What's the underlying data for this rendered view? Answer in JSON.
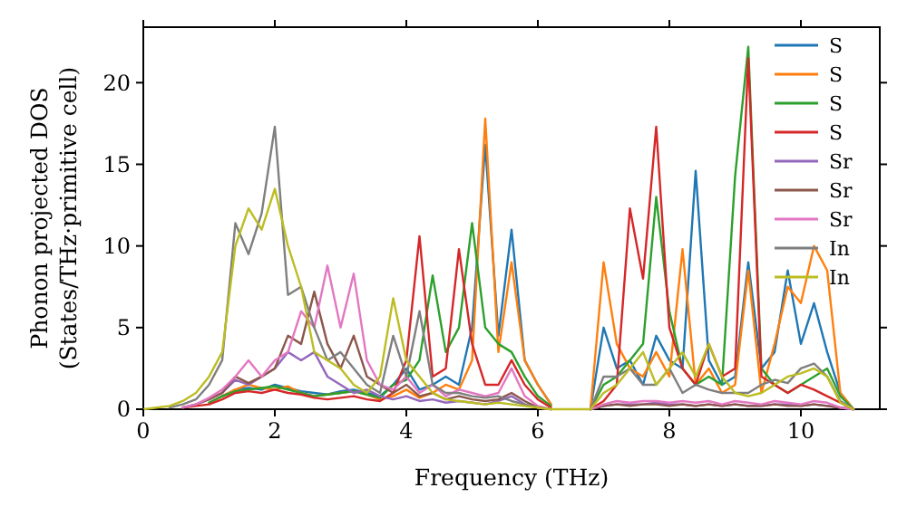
{
  "chart_data": {
    "type": "line",
    "xlabel": "Frequency (THz)",
    "ylabel": "Phonon projected DOS\n(States/THz·primitive cell)",
    "x": [
      0,
      0.2,
      0.4,
      0.6,
      0.8,
      1,
      1.2,
      1.4,
      1.6,
      1.8,
      2,
      2.2,
      2.4,
      2.6,
      2.8,
      3,
      3.2,
      3.4,
      3.6,
      3.8,
      4,
      4.2,
      4.4,
      4.6,
      4.8,
      5,
      5.2,
      5.4,
      5.6,
      5.8,
      6,
      6.2,
      6.4,
      6.6,
      6.8,
      7,
      7.2,
      7.4,
      7.6,
      7.8,
      8,
      8.2,
      8.4,
      8.6,
      8.8,
      9,
      9.2,
      9.4,
      9.6,
      9.8,
      10,
      10.2,
      10.4,
      10.6,
      10.8
    ],
    "xlim": [
      0,
      11.2
    ],
    "xticks": [
      0,
      2,
      4,
      6,
      8,
      10
    ],
    "ylim": [
      0,
      23.4
    ],
    "yticks": [
      0,
      5,
      10,
      15,
      20
    ],
    "legend": "top right",
    "grid": false,
    "marker": "none",
    "line_style": "solid",
    "series": [
      {
        "name": "S",
        "color": "#1f77b4",
        "values": [
          null,
          null,
          null,
          null,
          null,
          null,
          0.8,
          1.2,
          1.3,
          1.2,
          1.5,
          1.3,
          1.1,
          1.0,
          0.9,
          1.1,
          1.2,
          1.0,
          0.8,
          1.5,
          2.5,
          1.2,
          1.5,
          2.0,
          1.5,
          5.0,
          16.2,
          4.5,
          11.0,
          3.0,
          1.5,
          0.3,
          null,
          null,
          0,
          5.0,
          2.5,
          3.0,
          1.5,
          4.5,
          3.0,
          2.5,
          14.6,
          3.0,
          1.5,
          2.0,
          9.0,
          2.5,
          3.5,
          8.5,
          4.0,
          6.5,
          3.5,
          1.0,
          0
        ]
      },
      {
        "name": "S",
        "color": "#ff7f0e",
        "values": [
          null,
          null,
          null,
          null,
          null,
          0.4,
          0.8,
          1.2,
          1.5,
          1.3,
          1.2,
          1.4,
          1.0,
          0.8,
          0.9,
          1.0,
          1.1,
          0.9,
          0.6,
          0.8,
          1.2,
          0.7,
          1.0,
          1.5,
          1.2,
          3.0,
          17.8,
          3.5,
          9.0,
          3.0,
          1.5,
          0.3,
          null,
          null,
          0,
          9.0,
          4.0,
          2.5,
          2.0,
          3.5,
          2.0,
          9.8,
          1.5,
          2.5,
          1.0,
          1.5,
          8.5,
          1.0,
          4.0,
          7.5,
          6.5,
          10.0,
          8.5,
          1.0,
          0
        ]
      },
      {
        "name": "S",
        "color": "#2ca02c",
        "values": [
          null,
          null,
          null,
          null,
          null,
          0.4,
          0.8,
          1.1,
          1.2,
          1.3,
          1.4,
          1.2,
          1.0,
          0.8,
          0.9,
          1.0,
          1.1,
          0.9,
          0.7,
          1.5,
          1.8,
          3.0,
          8.2,
          3.5,
          5.0,
          11.4,
          5.0,
          4.0,
          3.5,
          2.0,
          0.8,
          0.2,
          null,
          null,
          0,
          1.5,
          2.0,
          3.0,
          4.0,
          13.0,
          6.0,
          2.5,
          1.5,
          2.0,
          1.5,
          14.3,
          22.2,
          2.5,
          1.5,
          1.0,
          1.5,
          2.0,
          2.5,
          0.8,
          0
        ]
      },
      {
        "name": "S",
        "color": "#d62728",
        "values": [
          null,
          null,
          null,
          0.1,
          0.2,
          0.3,
          0.6,
          1.0,
          1.1,
          1.0,
          1.2,
          1.0,
          0.9,
          0.7,
          0.6,
          0.7,
          0.8,
          0.6,
          0.5,
          1.0,
          3.0,
          10.6,
          2.0,
          2.5,
          9.8,
          4.0,
          1.5,
          1.5,
          3.0,
          1.5,
          0.6,
          0.1,
          null,
          null,
          0,
          0.5,
          1.5,
          12.3,
          8.0,
          17.3,
          5.0,
          2.5,
          1.5,
          4.0,
          2.0,
          2.5,
          21.5,
          2.0,
          1.5,
          1.0,
          1.5,
          1.2,
          0.8,
          0.4,
          0
        ]
      },
      {
        "name": "Sr",
        "color": "#9467bd",
        "values": [
          null,
          null,
          null,
          0.1,
          0.3,
          0.6,
          1.0,
          1.8,
          1.5,
          2.0,
          2.5,
          3.5,
          3.0,
          3.5,
          2.0,
          1.5,
          1.0,
          1.2,
          0.8,
          0.6,
          0.8,
          0.5,
          0.6,
          0.4,
          0.5,
          0.4,
          0.3,
          0.5,
          0.8,
          0.3,
          0.1,
          0,
          null,
          null,
          0,
          0.2,
          0.3,
          0.3,
          0.3,
          0.4,
          0.3,
          0.3,
          0.2,
          0.3,
          0.2,
          0.3,
          0.2,
          0.2,
          0.3,
          0.3,
          0.2,
          0.3,
          0.2,
          0.1,
          0
        ]
      },
      {
        "name": "Sr",
        "color": "#8c564b",
        "values": [
          null,
          null,
          null,
          0.1,
          0.3,
          0.6,
          1.0,
          2.0,
          1.6,
          2.0,
          2.5,
          4.5,
          4.0,
          7.2,
          4.0,
          2.5,
          4.5,
          2.0,
          1.5,
          1.0,
          1.5,
          0.8,
          1.0,
          0.6,
          0.8,
          0.6,
          0.5,
          0.6,
          1.0,
          0.5,
          0.1,
          0,
          null,
          null,
          0,
          0.2,
          0.3,
          0.2,
          0.3,
          0.3,
          0.2,
          0.3,
          0.2,
          0.3,
          0.2,
          0.3,
          0.2,
          0.2,
          0.3,
          0.2,
          0.2,
          0.3,
          0.2,
          0.1,
          0
        ]
      },
      {
        "name": "Sr",
        "color": "#e377c2",
        "values": [
          null,
          null,
          null,
          0.1,
          0.3,
          0.7,
          1.2,
          2.0,
          3.0,
          2.0,
          3.0,
          3.5,
          6.0,
          5.0,
          8.8,
          5.0,
          8.3,
          3.0,
          1.5,
          1.2,
          2.0,
          1.0,
          1.5,
          0.8,
          1.2,
          1.0,
          0.8,
          1.0,
          2.5,
          0.8,
          0.2,
          0,
          null,
          null,
          0,
          0.3,
          0.5,
          0.4,
          0.5,
          0.5,
          0.4,
          0.5,
          0.4,
          0.5,
          0.3,
          0.5,
          0.4,
          0.3,
          0.5,
          0.4,
          0.3,
          0.5,
          0.4,
          0.1,
          0
        ]
      },
      {
        "name": "In",
        "color": "#7f7f7f",
        "values": [
          null,
          null,
          0.1,
          0.3,
          0.6,
          1.5,
          3.0,
          11.4,
          9.5,
          12.0,
          17.3,
          7.0,
          7.5,
          5.0,
          3.0,
          3.5,
          2.5,
          1.5,
          1.0,
          4.5,
          2.0,
          6.0,
          1.5,
          1.0,
          1.0,
          0.8,
          0.7,
          0.8,
          0.5,
          0.3,
          0.1,
          0,
          null,
          null,
          0,
          2.0,
          2.0,
          2.5,
          1.5,
          1.5,
          2.5,
          1.0,
          1.5,
          1.2,
          1.0,
          1.0,
          1.0,
          1.5,
          1.8,
          1.6,
          2.5,
          2.8,
          2.0,
          0.5,
          0
        ]
      },
      {
        "name": "In",
        "color": "#bcbd22",
        "values": [
          0,
          0.1,
          0.2,
          0.5,
          1.0,
          2.0,
          3.5,
          10.0,
          12.3,
          11.0,
          13.5,
          10.0,
          7.5,
          3.5,
          3.0,
          2.5,
          1.5,
          1.0,
          2.0,
          6.8,
          3.0,
          2.0,
          1.0,
          0.6,
          0.5,
          0.4,
          0.3,
          0.4,
          0.3,
          0.2,
          0.1,
          0,
          0,
          0,
          0,
          1.0,
          1.5,
          2.5,
          3.5,
          1.5,
          2.5,
          3.5,
          2.0,
          4.0,
          2.0,
          1.0,
          0.8,
          1.0,
          1.5,
          2.0,
          2.2,
          2.5,
          2.0,
          0.4,
          0
        ]
      }
    ]
  }
}
